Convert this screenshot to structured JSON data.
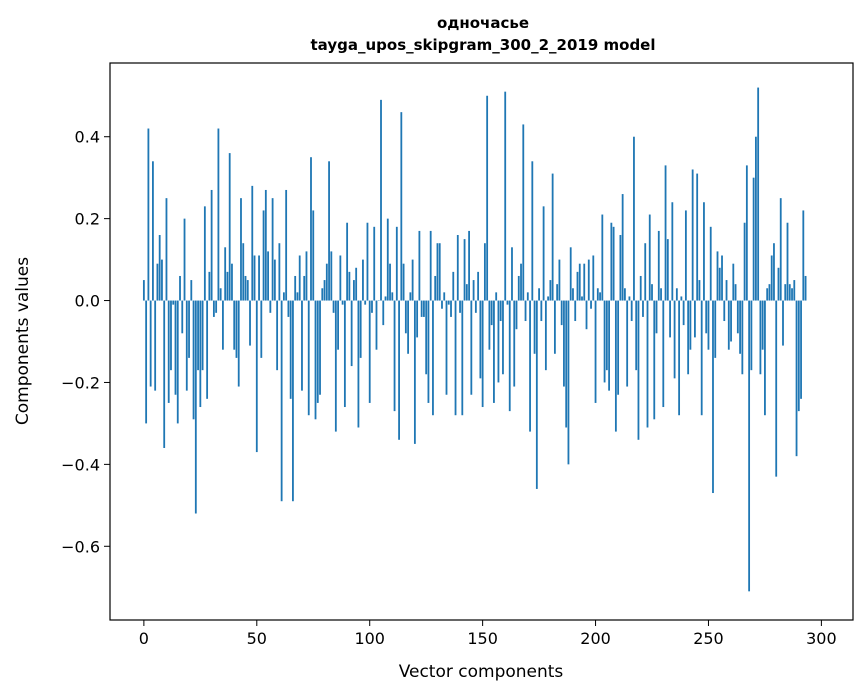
{
  "chart_data": {
    "type": "bar",
    "title": "одночасье",
    "subtitle": "tayga_upos_skipgram_300_2_2019 model",
    "xlabel": "Vector components",
    "ylabel": "Components values",
    "xlim": [
      -15,
      314
    ],
    "ylim": [
      -0.78,
      0.58
    ],
    "xticks": [
      0,
      50,
      100,
      150,
      200,
      250,
      300
    ],
    "yticks": [
      -0.6,
      -0.4,
      -0.2,
      0.0,
      0.2,
      0.4
    ],
    "ytick_labels": [
      "−0.6",
      "−0.4",
      "−0.2",
      "0.0",
      "0.2",
      "0.4"
    ],
    "bar_color": "#1f77b4",
    "values": [
      0.05,
      -0.3,
      0.42,
      -0.21,
      0.34,
      -0.22,
      0.09,
      0.16,
      0.1,
      -0.36,
      0.25,
      -0.25,
      -0.17,
      -0.01,
      -0.23,
      -0.3,
      0.06,
      -0.08,
      0.2,
      -0.22,
      -0.14,
      0.05,
      -0.29,
      -0.52,
      -0.17,
      -0.26,
      -0.17,
      0.23,
      -0.24,
      0.07,
      0.27,
      -0.04,
      -0.03,
      0.42,
      0.03,
      -0.12,
      0.13,
      0.07,
      0.36,
      0.09,
      -0.12,
      -0.14,
      -0.21,
      0.25,
      0.14,
      0.06,
      0.05,
      -0.11,
      0.28,
      0.11,
      -0.37,
      0.11,
      -0.14,
      0.22,
      0.27,
      0.12,
      -0.03,
      0.25,
      0.1,
      -0.17,
      0.14,
      -0.49,
      0.02,
      0.27,
      -0.04,
      -0.24,
      -0.49,
      0.06,
      0.02,
      0.11,
      -0.22,
      0.06,
      0.12,
      -0.28,
      0.35,
      0.22,
      -0.29,
      -0.25,
      -0.23,
      0.03,
      0.05,
      0.09,
      0.34,
      0.12,
      -0.03,
      -0.32,
      -0.12,
      0.11,
      -0.01,
      -0.26,
      0.19,
      0.07,
      -0.16,
      0.05,
      0.08,
      -0.31,
      -0.14,
      0.1,
      -0.01,
      0.19,
      -0.25,
      -0.03,
      0.18,
      -0.12,
      0.0,
      0.49,
      -0.06,
      0.01,
      0.2,
      0.09,
      0.02,
      -0.27,
      0.18,
      -0.34,
      0.46,
      0.09,
      -0.08,
      -0.13,
      0.02,
      0.1,
      -0.35,
      -0.09,
      0.17,
      -0.04,
      -0.04,
      -0.18,
      -0.25,
      0.17,
      -0.28,
      0.06,
      0.14,
      0.14,
      -0.02,
      0.02,
      -0.23,
      -0.01,
      -0.04,
      0.07,
      -0.28,
      0.16,
      -0.03,
      -0.28,
      0.15,
      0.04,
      0.17,
      -0.23,
      0.05,
      -0.03,
      0.07,
      -0.19,
      -0.26,
      0.14,
      0.5,
      -0.12,
      -0.06,
      -0.25,
      0.02,
      -0.2,
      -0.05,
      -0.18,
      0.51,
      -0.01,
      -0.27,
      0.13,
      -0.21,
      -0.07,
      0.06,
      0.09,
      0.43,
      -0.05,
      0.02,
      -0.32,
      0.34,
      -0.13,
      -0.46,
      0.03,
      -0.05,
      0.23,
      -0.17,
      0.01,
      0.05,
      0.31,
      -0.13,
      0.04,
      0.1,
      -0.06,
      -0.21,
      -0.31,
      -0.4,
      0.13,
      0.03,
      -0.05,
      0.07,
      0.09,
      0.01,
      0.09,
      -0.07,
      0.1,
      -0.02,
      0.11,
      -0.25,
      0.03,
      0.02,
      0.21,
      -0.2,
      -0.17,
      -0.22,
      0.19,
      0.18,
      -0.32,
      -0.23,
      0.16,
      0.26,
      0.03,
      -0.21,
      0.01,
      -0.05,
      0.4,
      -0.17,
      -0.34,
      0.06,
      -0.04,
      0.14,
      -0.31,
      0.21,
      0.04,
      -0.29,
      -0.08,
      0.17,
      0.03,
      -0.26,
      0.33,
      0.15,
      -0.09,
      0.24,
      -0.19,
      0.03,
      -0.28,
      0.01,
      -0.06,
      0.22,
      -0.18,
      -0.12,
      0.32,
      -0.09,
      0.31,
      0.05,
      -0.28,
      0.24,
      -0.08,
      -0.12,
      0.18,
      -0.47,
      -0.14,
      0.12,
      0.08,
      0.11,
      -0.05,
      0.05,
      -0.12,
      -0.1,
      0.09,
      0.04,
      -0.08,
      -0.13,
      -0.18,
      0.19,
      0.33,
      -0.71,
      -0.17,
      0.3,
      0.4,
      0.52,
      -0.18,
      -0.12,
      -0.28,
      0.03,
      0.04,
      0.11,
      0.14,
      -0.43,
      0.08,
      0.25,
      -0.11,
      0.04,
      0.19,
      0.04,
      0.03,
      0.05,
      -0.38,
      -0.27,
      -0.24,
      0.22,
      0.06
    ]
  }
}
